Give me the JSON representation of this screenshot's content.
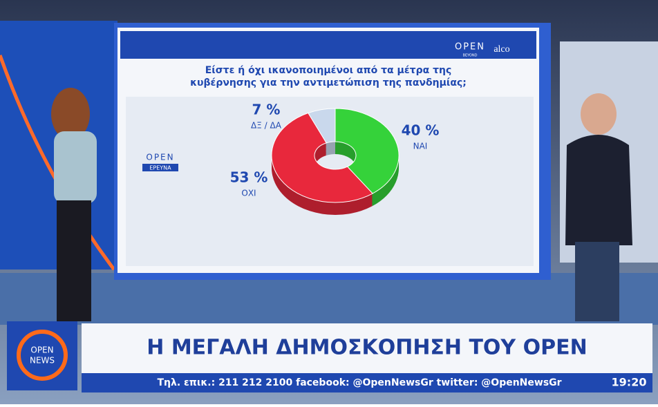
{
  "chart_data": {
    "type": "pie",
    "title": "Είστε ή όχι ικανοποιημένοι από τα μέτρα της κυβέρνησης για την αντιμετώπιση της πανδημίας;",
    "categories": [
      "ΝΑΙ",
      "ΟΧΙ",
      "ΔΞ / ΔΑ"
    ],
    "values": [
      40,
      53,
      7
    ],
    "value_labels": [
      "40 %",
      "53 %",
      "7 %"
    ],
    "colors": [
      "#35d23a",
      "#e8283c",
      "#c9d8ec"
    ]
  },
  "board": {
    "brand": "OPEN",
    "brand_sub": "BEYOND",
    "partner": "alco",
    "badge_top": "OPEN",
    "badge_bottom": "ΕΡΕΥΝΑ"
  },
  "banner": {
    "logo_top": "OPEN",
    "logo_bottom": "NEWS",
    "headline": "Η ΜΕΓΑΛΗ ΔΗΜΟΣΚΟΠΗΣΗ ΤΟΥ OPEN",
    "ticker": "Τηλ. επικ.: 211 212 2100 facebook: @OpenNewsGr twitter: @OpenNewsGr",
    "time": "19:20"
  }
}
